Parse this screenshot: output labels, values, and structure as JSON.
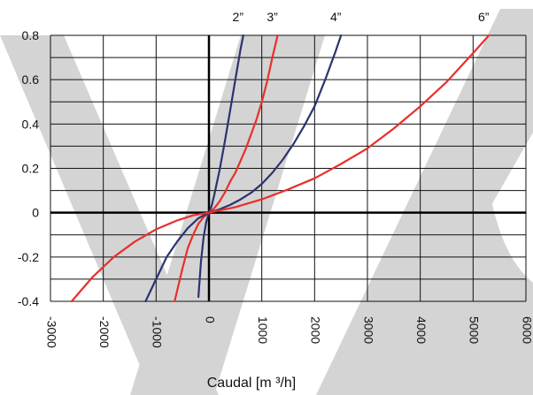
{
  "chart_data": {
    "type": "line",
    "xlabel": "Caudal [m ³/h]",
    "ylabel": "",
    "xlim": [
      -3000,
      6000
    ],
    "ylim": [
      -0.4,
      0.8
    ],
    "x_ticks": [
      -3000,
      -2000,
      -1000,
      0,
      1000,
      2000,
      3000,
      4000,
      5000,
      6000
    ],
    "x_tick_labels": [
      "-3000",
      "-2000",
      "-1000",
      "0",
      "1000",
      "2000",
      "3000",
      "4000",
      "5000",
      "6000"
    ],
    "y_ticks": [
      -0.4,
      -0.2,
      0,
      0.2,
      0.4,
      0.6,
      0.8
    ],
    "y_tick_labels": [
      "-0.4",
      "-0.2",
      "0",
      "0.2",
      "0.4",
      "0.6",
      "0.8"
    ],
    "grid": true,
    "series": [
      {
        "name": "2”",
        "color": "#2b3370",
        "x": [
          -200,
          -150,
          -100,
          -50,
          0,
          50,
          100,
          200,
          300,
          400,
          500,
          600,
          650
        ],
        "y": [
          -0.38,
          -0.22,
          -0.11,
          -0.04,
          0,
          0.03,
          0.08,
          0.19,
          0.32,
          0.46,
          0.6,
          0.74,
          0.8
        ]
      },
      {
        "name": "3”",
        "color": "#e8302a",
        "x": [
          -650,
          -500,
          -400,
          -300,
          -200,
          -100,
          0,
          100,
          200,
          300,
          400,
          500,
          700,
          900,
          1000,
          1100,
          1200,
          1300
        ],
        "y": [
          -0.4,
          -0.25,
          -0.16,
          -0.1,
          -0.05,
          -0.02,
          0,
          0.02,
          0.05,
          0.09,
          0.14,
          0.18,
          0.29,
          0.42,
          0.5,
          0.59,
          0.7,
          0.8
        ]
      },
      {
        "name": "4”",
        "color": "#2b3370",
        "x": [
          -1200,
          -1000,
          -800,
          -600,
          -400,
          -200,
          0,
          200,
          400,
          600,
          800,
          1000,
          1200,
          1400,
          1600,
          1800,
          2000,
          2200,
          2400,
          2500
        ],
        "y": [
          -0.4,
          -0.3,
          -0.2,
          -0.13,
          -0.07,
          -0.025,
          0,
          0.015,
          0.035,
          0.06,
          0.09,
          0.13,
          0.18,
          0.24,
          0.31,
          0.39,
          0.48,
          0.6,
          0.73,
          0.8
        ]
      },
      {
        "name": "6”",
        "color": "#e8302a",
        "x": [
          -2600,
          -2200,
          -1800,
          -1400,
          -1000,
          -600,
          -300,
          0,
          500,
          1000,
          1500,
          2000,
          2500,
          3000,
          3500,
          4000,
          4500,
          5000,
          5300
        ],
        "y": [
          -0.4,
          -0.29,
          -0.2,
          -0.13,
          -0.075,
          -0.035,
          -0.012,
          0,
          0.025,
          0.06,
          0.105,
          0.155,
          0.22,
          0.29,
          0.38,
          0.48,
          0.59,
          0.72,
          0.8
        ]
      }
    ]
  }
}
